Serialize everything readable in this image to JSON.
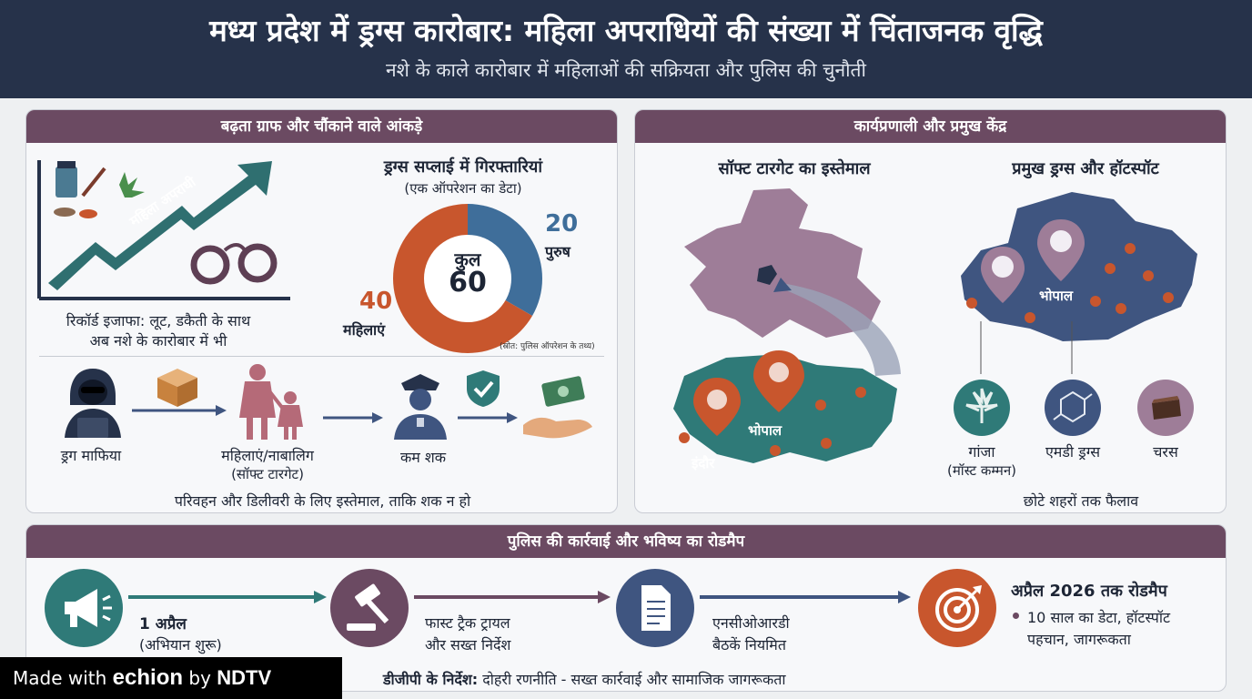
{
  "header": {
    "title": "मध्य प्रदेश में ड्रग्स कारोबार: महिला अपराधियों की संख्या में चिंताजनक वृद्धि",
    "subtitle": "नशे के काले कारोबार में महिलाओं की सक्रियता और पुलिस की चुनौती"
  },
  "graph_panel": {
    "title": "बढ़ता ग्राफ और चौंकाने वाले आंकड़े",
    "arrow_label": "महिला अपराधी",
    "caption_line1": "रिकॉर्ड इजाफा: लूट, डकैती के साथ",
    "caption_line2": "अब नशे के कारोबार में भी",
    "donut": {
      "title": "ड्रग्स सप्लाई में गिरफ्तारियां",
      "subtitle": "(एक ऑपरेशन का डेटा)",
      "center_label": "कुल",
      "center_value": "60",
      "male_value": "20",
      "male_label": "पुरुष",
      "female_value": "40",
      "female_label": "महिलाएं",
      "source": "(स्रोत: पुलिस ऑपरेशन के तथ्य)",
      "male_color": "#3f6e9a",
      "female_color": "#c8562d"
    },
    "flow": {
      "mafia": "ड्रग माफिया",
      "women_line1": "महिलाएं/नाबालिग",
      "women_line2": "(सॉफ्ट टारगेट)",
      "less_suspicion": "कम शक",
      "caption": "परिवहन और डिलीवरी के लिए इस्तेमाल, ताकि शक न हो"
    }
  },
  "method_panel": {
    "title": "कार्यप्रणाली और प्रमुख केंद्र",
    "soft_target_title": "सॉफ्ट टारगेट का इस्तेमाल",
    "city1": "इंदौर",
    "city2": "भोपाल",
    "hotspot_title": "प्रमुख ड्रग्स और हॉटस्पॉट",
    "hotspot_city": "भोपाल",
    "drug1_line1": "गांजा",
    "drug1_line2": "(मॉस्ट कम्मन)",
    "drug2": "एमडी ड्रग्स",
    "drug3": "चरस",
    "caption": "छोटे शहरों तक फैलाव"
  },
  "roadmap": {
    "title": "पुलिस की कार्रवाई और भविष्य का रोडमैप",
    "step1_line1": "1 अप्रैल",
    "step1_line2": "(अभियान शुरू)",
    "step2_line1": "फास्ट ट्रैक ट्रायल",
    "step2_line2": "और सख्त निर्देश",
    "step3_line1": "एनसीओआरडी",
    "step3_line2": "बैठकें नियमित",
    "step4_title": "अप्रैल 2026 तक रोडमैप",
    "step4_line1": "10 साल का डेटा, हॉटस्पॉट",
    "step4_line2": "पहचान, जागरूकता",
    "footer_label": "डीजीपी के निर्देश:",
    "footer_text": "दोहरी रणनीति - सख्त कार्रवाई और सामाजिक जागरूकता"
  },
  "watermark": {
    "made_with": "Made with",
    "echion": "echion",
    "by": "by",
    "ndtv": "NDTV"
  }
}
